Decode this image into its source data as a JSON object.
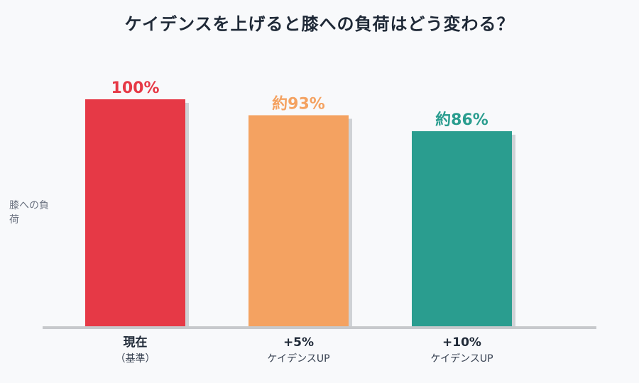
{
  "chart_data": {
    "type": "bar",
    "title": "ケイデンスを上げると膝への負荷はどう変わる？",
    "ylabel": "膝への負荷",
    "xlabel": "",
    "ylim": [
      0,
      100
    ],
    "grid": false,
    "categories": [
      {
        "label": "現在",
        "sublabel": "（基準）"
      },
      {
        "label": "+5%",
        "sublabel": "ケイデンスUP"
      },
      {
        "label": "+10%",
        "sublabel": "ケイデンスUP"
      }
    ],
    "values": [
      100,
      93,
      86
    ],
    "data_labels": [
      "100%",
      "約93%",
      "約86%"
    ],
    "colors": [
      "#e63946",
      "#f4a261",
      "#2a9d8f"
    ]
  }
}
